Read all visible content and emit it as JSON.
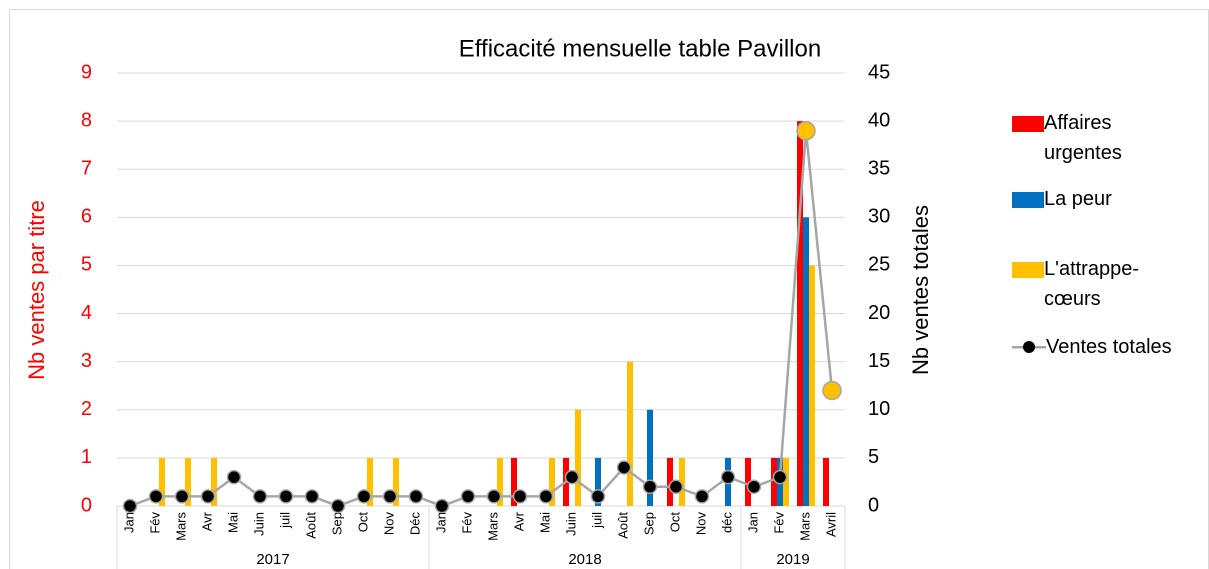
{
  "chart_data": {
    "type": "bar",
    "title": "Efficacité mensuelle table Pavillon",
    "ylabel": "Nb ventes par titre",
    "y2label": "Nb ventes totales",
    "groups": [
      {
        "label": "2017",
        "categories": [
          "Jan",
          "Fév",
          "Mars",
          "Avr",
          "Mai",
          "Juin",
          "juil",
          "Août",
          "Sep",
          "Oct",
          "Nov",
          "Déc"
        ]
      },
      {
        "label": "2018",
        "categories": [
          "Jan",
          "Fév",
          "Mars",
          "Avr",
          "Mai",
          "Juin",
          "juil",
          "Août",
          "Sep",
          "Oct",
          "Nov",
          "déc"
        ]
      },
      {
        "label": "2019",
        "categories": [
          "Jan",
          "Fév",
          "Mars",
          "Avril"
        ]
      }
    ],
    "series": [
      {
        "name": "Affaires urgentes",
        "color": "#ff0000",
        "values": [
          null,
          null,
          null,
          null,
          null,
          null,
          null,
          null,
          null,
          null,
          null,
          null,
          null,
          null,
          null,
          1,
          null,
          1,
          null,
          null,
          null,
          1,
          null,
          null,
          1,
          1,
          8,
          1
        ]
      },
      {
        "name": "La peur",
        "color": "#0070c0",
        "values": [
          null,
          null,
          null,
          null,
          null,
          null,
          null,
          null,
          null,
          null,
          null,
          null,
          null,
          null,
          null,
          null,
          null,
          null,
          1,
          null,
          2,
          null,
          null,
          1,
          null,
          1,
          6,
          null
        ]
      },
      {
        "name": "L'attrappe-cœurs",
        "color": "#ffc000",
        "values": [
          null,
          1,
          1,
          1,
          null,
          null,
          null,
          null,
          null,
          1,
          1,
          null,
          null,
          null,
          1,
          null,
          1,
          2,
          null,
          3,
          null,
          1,
          null,
          null,
          null,
          1,
          5,
          null
        ]
      },
      {
        "name": "Ventes totales",
        "type": "line",
        "axis": "y2",
        "color": "#a6a6a6",
        "values": [
          0,
          1,
          1,
          1,
          3,
          1,
          1,
          1,
          0,
          1,
          1,
          1,
          0,
          1,
          1,
          1,
          1,
          3,
          1,
          4,
          2,
          2,
          1,
          3,
          2,
          3,
          39,
          12
        ],
        "marker_colors": [
          "#000000",
          "#000000",
          "#000000",
          "#000000",
          "#000000",
          "#000000",
          "#000000",
          "#000000",
          "#000000",
          "#000000",
          "#000000",
          "#000000",
          "#000000",
          "#000000",
          "#000000",
          "#000000",
          "#000000",
          "#000000",
          "#000000",
          "#000000",
          "#000000",
          "#000000",
          "#000000",
          "#000000",
          "#000000",
          "#000000",
          "#ffc000",
          "#ffc000"
        ]
      }
    ],
    "ylim": [
      0,
      9
    ],
    "yticks": [
      0,
      1,
      2,
      3,
      4,
      5,
      6,
      7,
      8,
      9
    ],
    "y2lim": [
      0,
      45
    ],
    "y2ticks": [
      0,
      5,
      10,
      15,
      20,
      25,
      30,
      35,
      40,
      45
    ],
    "grid": true
  }
}
